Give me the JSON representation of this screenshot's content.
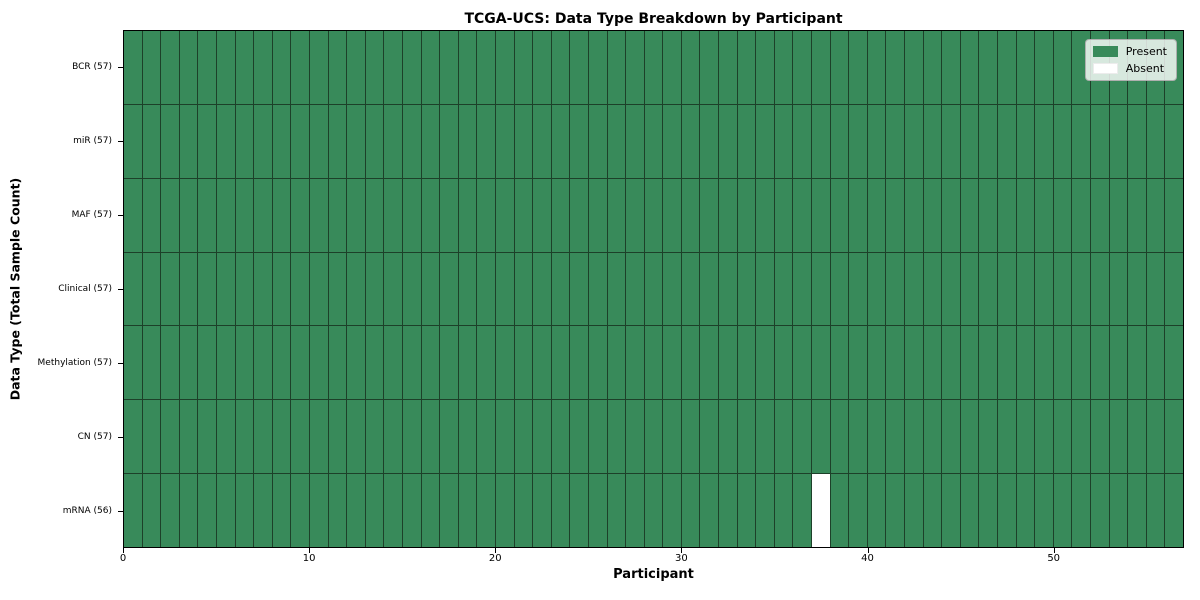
{
  "figure": {
    "kind": "static-heatmap-figure"
  },
  "chart_data": {
    "type": "heatmap",
    "title": "TCGA-UCS: Data Type Breakdown by Participant",
    "xlabel": "Participant",
    "ylabel": "Data Type (Total Sample Count)",
    "n_participants": 57,
    "x_ticks": [
      0,
      10,
      20,
      30,
      40,
      50
    ],
    "x_range": [
      0,
      57
    ],
    "rows": [
      {
        "label": "BCR (57)",
        "data_type": "BCR",
        "count": 57,
        "absent_participants": []
      },
      {
        "label": "miR (57)",
        "data_type": "miR",
        "count": 57,
        "absent_participants": []
      },
      {
        "label": "MAF (57)",
        "data_type": "MAF",
        "count": 57,
        "absent_participants": []
      },
      {
        "label": "Clinical (57)",
        "data_type": "Clinical",
        "count": 57,
        "absent_participants": []
      },
      {
        "label": "Methylation (57)",
        "data_type": "Methylation",
        "count": 57,
        "absent_participants": []
      },
      {
        "label": "CN (57)",
        "data_type": "CN",
        "count": 57,
        "absent_participants": []
      },
      {
        "label": "mRNA (56)",
        "data_type": "mRNA",
        "count": 56,
        "absent_participants": [
          37
        ]
      }
    ],
    "legend": [
      {
        "label": "Present",
        "color": "#388a5a"
      },
      {
        "label": "Absent",
        "color": "#ffffff"
      }
    ],
    "colors": {
      "present": "#388a5a",
      "absent": "#ffffff",
      "edge": "#1d4029",
      "plot_border": "#000000"
    },
    "grid_on": true,
    "legend_position": "upper right"
  }
}
